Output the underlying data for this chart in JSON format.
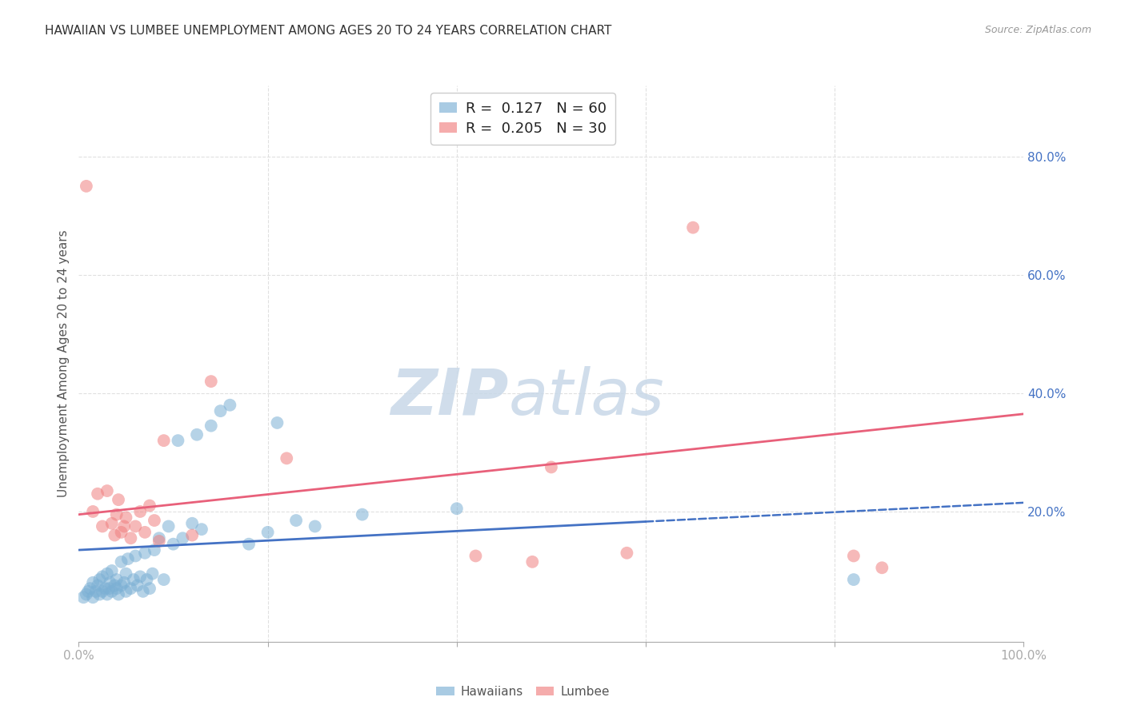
{
  "title": "HAWAIIAN VS LUMBEE UNEMPLOYMENT AMONG AGES 20 TO 24 YEARS CORRELATION CHART",
  "source": "Source: ZipAtlas.com",
  "ylabel": "Unemployment Among Ages 20 to 24 years",
  "xlim": [
    0.0,
    1.0
  ],
  "ylim": [
    -0.02,
    0.92
  ],
  "x_ticks": [
    0.0,
    0.2,
    0.4,
    0.6,
    0.8,
    1.0
  ],
  "x_tick_labels": [
    "0.0%",
    "",
    "",
    "",
    "",
    "100.0%"
  ],
  "y_ticks": [
    0.2,
    0.4,
    0.6,
    0.8
  ],
  "y_tick_labels": [
    "20.0%",
    "40.0%",
    "60.0%",
    "80.0%"
  ],
  "background_color": "#ffffff",
  "grid_color": "#e0e0e0",
  "hawaiian_color": "#7bafd4",
  "lumbee_color": "#f08080",
  "hawaiian_R": 0.127,
  "hawaiian_N": 60,
  "lumbee_R": 0.205,
  "lumbee_N": 30,
  "hawaiian_line_x": [
    0.0,
    1.0
  ],
  "hawaiian_line_y": [
    0.135,
    0.215
  ],
  "hawaiian_line_solid_end": 0.6,
  "lumbee_line_x": [
    0.0,
    1.0
  ],
  "lumbee_line_y": [
    0.195,
    0.365
  ],
  "hawaiian_x": [
    0.005,
    0.008,
    0.01,
    0.012,
    0.015,
    0.015,
    0.018,
    0.02,
    0.022,
    0.022,
    0.025,
    0.025,
    0.028,
    0.03,
    0.03,
    0.032,
    0.033,
    0.035,
    0.035,
    0.038,
    0.04,
    0.04,
    0.042,
    0.045,
    0.045,
    0.048,
    0.05,
    0.05,
    0.052,
    0.055,
    0.058,
    0.06,
    0.062,
    0.065,
    0.068,
    0.07,
    0.072,
    0.075,
    0.078,
    0.08,
    0.085,
    0.09,
    0.095,
    0.1,
    0.105,
    0.11,
    0.12,
    0.125,
    0.13,
    0.14,
    0.15,
    0.16,
    0.18,
    0.2,
    0.21,
    0.23,
    0.25,
    0.3,
    0.4,
    0.82
  ],
  "hawaiian_y": [
    0.055,
    0.06,
    0.065,
    0.07,
    0.055,
    0.08,
    0.065,
    0.075,
    0.06,
    0.085,
    0.065,
    0.09,
    0.07,
    0.06,
    0.095,
    0.07,
    0.08,
    0.065,
    0.1,
    0.075,
    0.07,
    0.085,
    0.06,
    0.075,
    0.115,
    0.08,
    0.065,
    0.095,
    0.12,
    0.07,
    0.085,
    0.125,
    0.075,
    0.09,
    0.065,
    0.13,
    0.085,
    0.07,
    0.095,
    0.135,
    0.155,
    0.085,
    0.175,
    0.145,
    0.32,
    0.155,
    0.18,
    0.33,
    0.17,
    0.345,
    0.37,
    0.38,
    0.145,
    0.165,
    0.35,
    0.185,
    0.175,
    0.195,
    0.205,
    0.085
  ],
  "lumbee_x": [
    0.008,
    0.015,
    0.02,
    0.025,
    0.03,
    0.035,
    0.038,
    0.04,
    0.042,
    0.045,
    0.048,
    0.05,
    0.055,
    0.06,
    0.065,
    0.07,
    0.075,
    0.08,
    0.085,
    0.09,
    0.12,
    0.14,
    0.22,
    0.42,
    0.48,
    0.5,
    0.58,
    0.65,
    0.82,
    0.85
  ],
  "lumbee_y": [
    0.75,
    0.2,
    0.23,
    0.175,
    0.235,
    0.18,
    0.16,
    0.195,
    0.22,
    0.165,
    0.175,
    0.19,
    0.155,
    0.175,
    0.2,
    0.165,
    0.21,
    0.185,
    0.15,
    0.32,
    0.16,
    0.42,
    0.29,
    0.125,
    0.115,
    0.275,
    0.13,
    0.68,
    0.125,
    0.105
  ]
}
